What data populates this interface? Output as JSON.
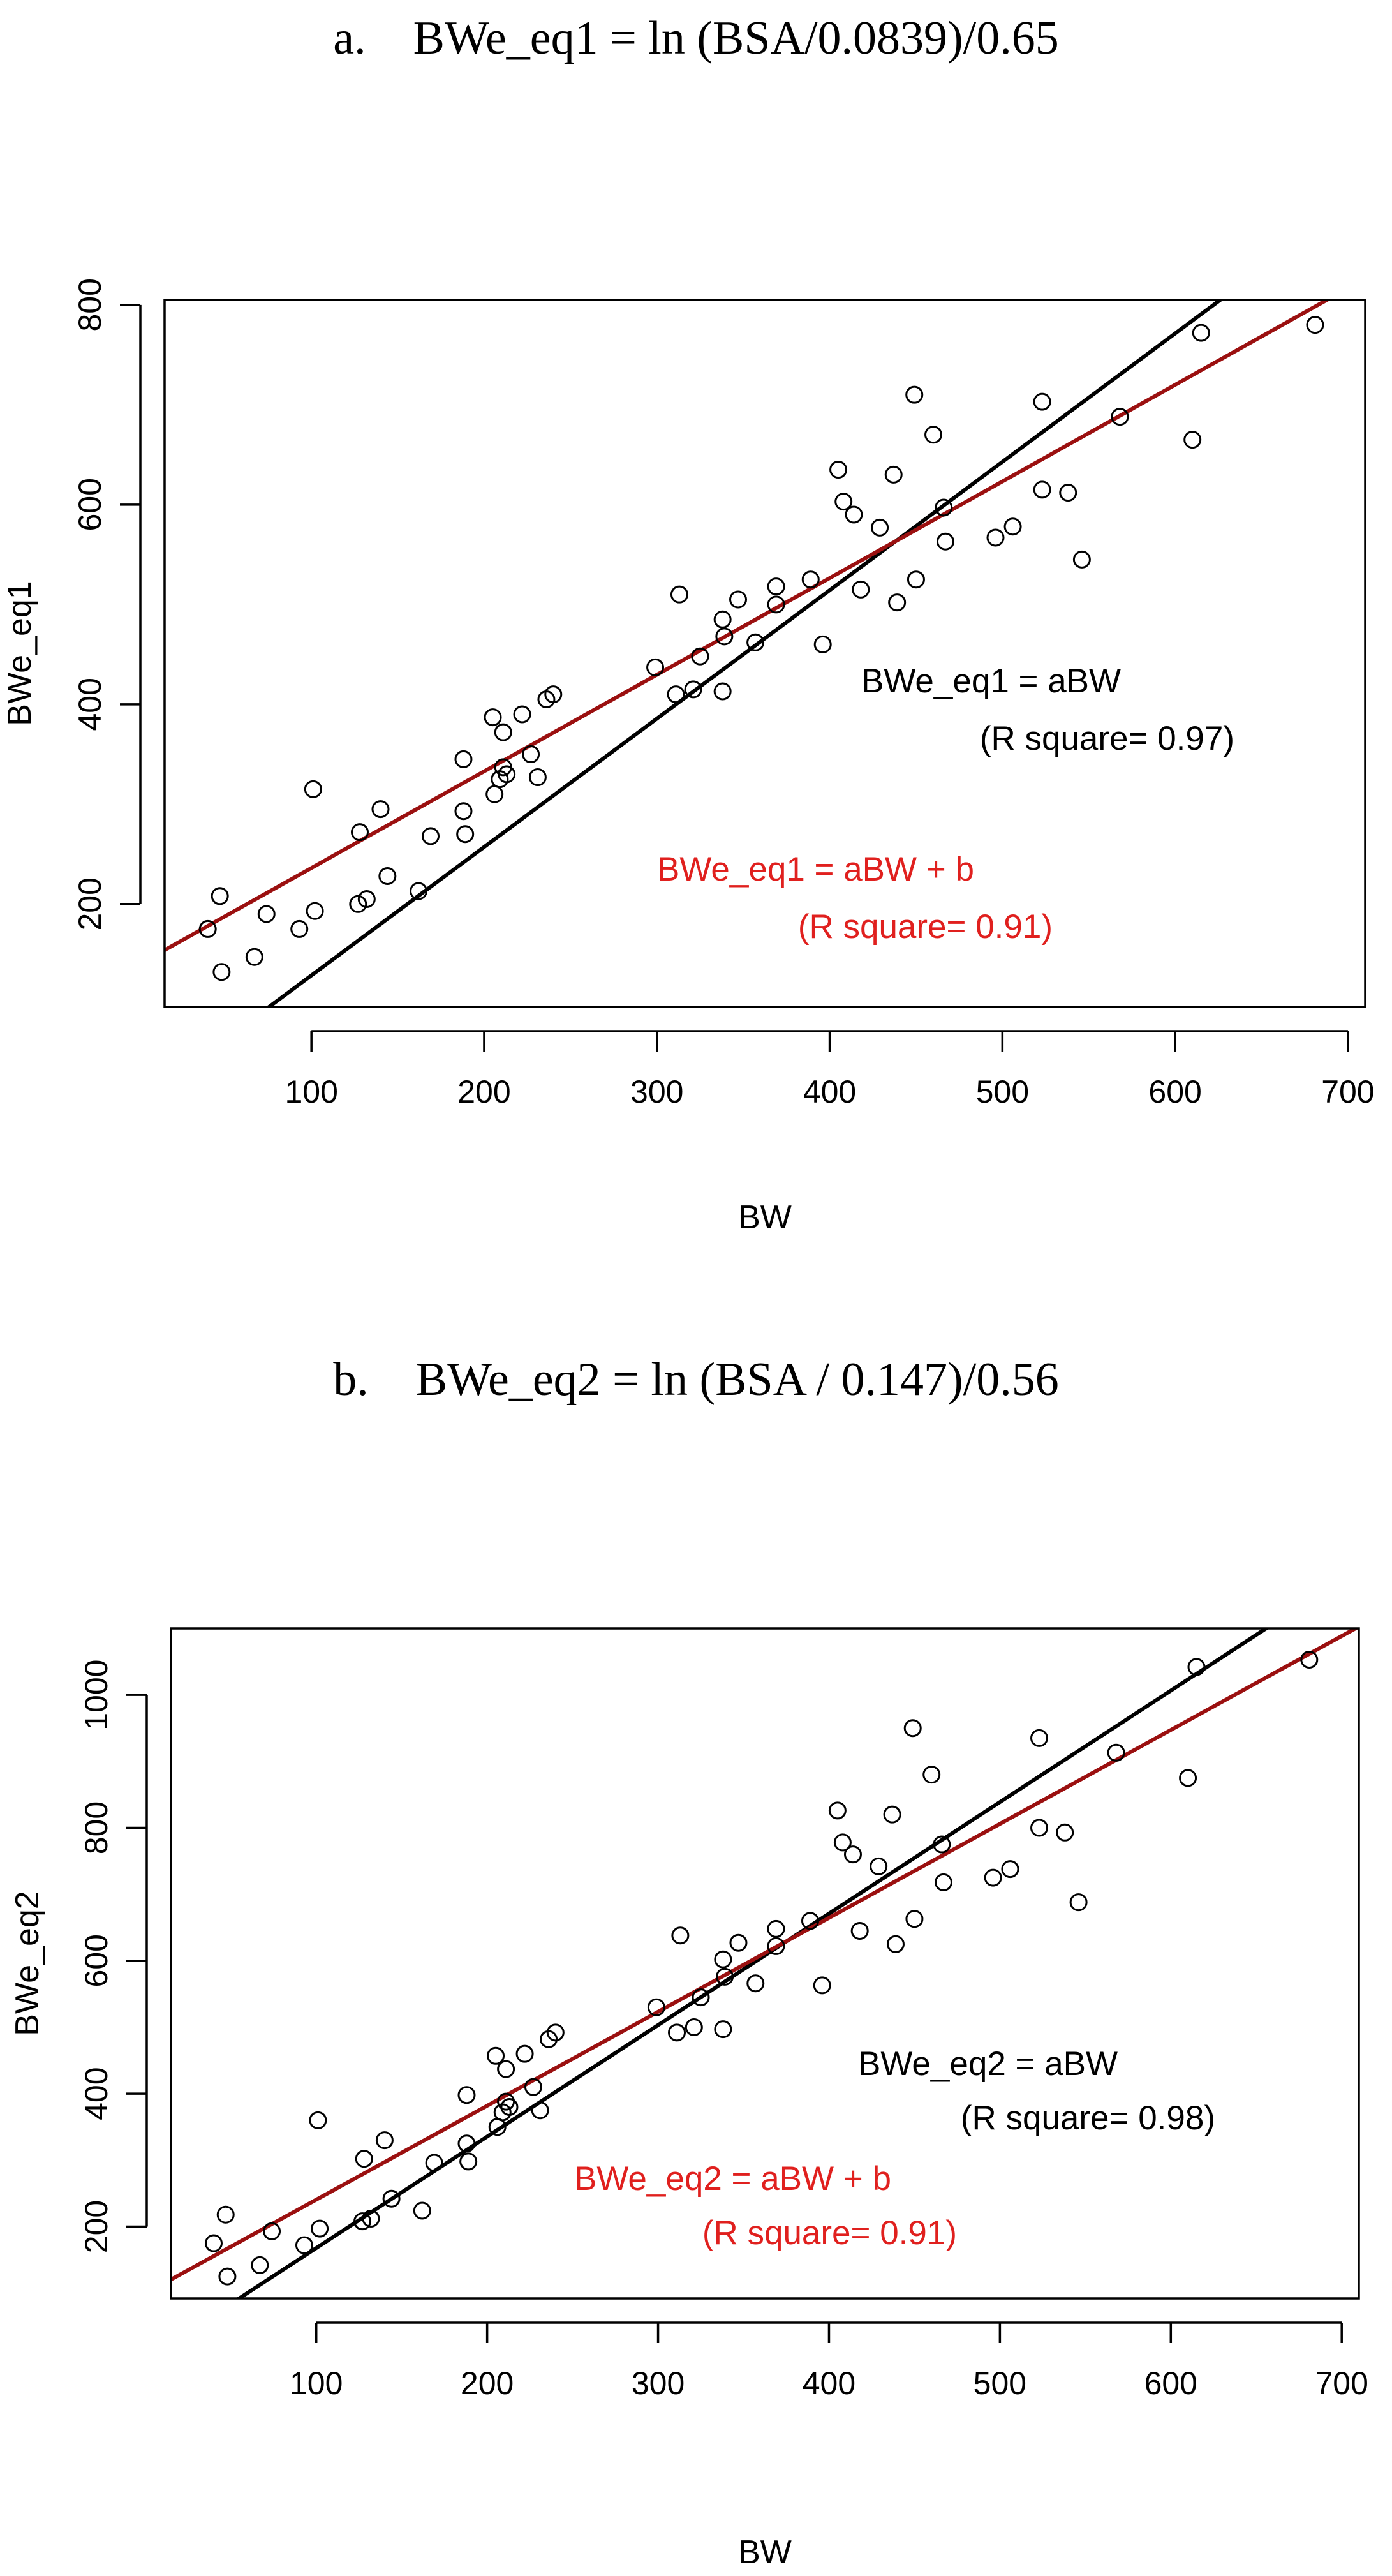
{
  "captions": {
    "a": "a.    BWe_eq1 = ln (BSA/0.0839)/0.65",
    "b": "b.    BWe_eq2 = ln (BSA / 0.147)/0.56"
  },
  "colors": {
    "black_fit": "#000000",
    "red_fit": "#9b1010",
    "red_text": "#e0201e",
    "points": "#000000"
  },
  "chart_data": [
    {
      "type": "scatter",
      "title": "",
      "xlabel": "BW",
      "ylabel": "BWe_eq1",
      "xlim": [
        15,
        710
      ],
      "ylim": [
        97,
        805
      ],
      "xticks": [
        100,
        200,
        300,
        400,
        500,
        600,
        700
      ],
      "yticks": [
        200,
        400,
        600,
        800
      ],
      "grid": false,
      "points": [
        [
          40,
          175
        ],
        [
          47,
          208
        ],
        [
          48,
          132
        ],
        [
          67,
          147
        ],
        [
          74,
          190
        ],
        [
          93,
          175
        ],
        [
          101,
          315
        ],
        [
          102,
          193
        ],
        [
          127,
          200
        ],
        [
          128,
          272
        ],
        [
          132,
          205
        ],
        [
          140,
          295
        ],
        [
          144,
          228
        ],
        [
          162,
          213
        ],
        [
          169,
          268
        ],
        [
          188,
          345
        ],
        [
          188,
          293
        ],
        [
          189,
          270
        ],
        [
          205,
          387
        ],
        [
          206,
          310
        ],
        [
          209,
          325
        ],
        [
          211,
          337
        ],
        [
          211,
          372
        ],
        [
          213,
          330
        ],
        [
          222,
          390
        ],
        [
          227,
          350
        ],
        [
          231,
          327
        ],
        [
          236,
          405
        ],
        [
          240,
          410
        ],
        [
          299,
          437
        ],
        [
          311,
          410
        ],
        [
          313,
          510
        ],
        [
          321,
          415
        ],
        [
          325,
          448
        ],
        [
          338,
          485
        ],
        [
          338,
          413
        ],
        [
          339,
          468
        ],
        [
          347,
          505
        ],
        [
          357,
          462
        ],
        [
          369,
          518
        ],
        [
          369,
          500
        ],
        [
          389,
          525
        ],
        [
          396,
          460
        ],
        [
          405,
          635
        ],
        [
          408,
          603
        ],
        [
          414,
          590
        ],
        [
          418,
          515
        ],
        [
          429,
          577
        ],
        [
          437,
          630
        ],
        [
          439,
          502
        ],
        [
          449,
          710
        ],
        [
          450,
          525
        ],
        [
          460,
          670
        ],
        [
          466,
          597
        ],
        [
          467,
          563
        ],
        [
          496,
          567
        ],
        [
          506,
          578
        ],
        [
          523,
          703
        ],
        [
          523,
          615
        ],
        [
          538,
          612
        ],
        [
          546,
          545
        ],
        [
          568,
          688
        ],
        [
          610,
          665
        ],
        [
          615,
          772
        ],
        [
          681,
          780
        ]
      ],
      "fits": [
        {
          "name": "BWe_eq1 = aBW",
          "r_squared_text": "(R square= 0.97)",
          "color": "#000000",
          "slope": 1.2857,
          "intercept": 0
        },
        {
          "name": "BWe_eq1 = aBW + b",
          "r_squared_text": "(R square= 0.91)",
          "color": "#9b1010",
          "slope": 0.9677,
          "intercept": 139.35
        }
      ]
    },
    {
      "type": "scatter",
      "title": "",
      "xlabel": "BW",
      "ylabel": "BWe_eq2",
      "xlim": [
        15,
        710
      ],
      "ylim": [
        92,
        1100
      ],
      "xticks": [
        100,
        200,
        300,
        400,
        500,
        600,
        700
      ],
      "yticks": [
        200,
        400,
        600,
        800,
        1000
      ],
      "grid": false,
      "points": [
        [
          40,
          175
        ],
        [
          47,
          218
        ],
        [
          48,
          125
        ],
        [
          67,
          142
        ],
        [
          74,
          193
        ],
        [
          93,
          172
        ],
        [
          101,
          360
        ],
        [
          102,
          197
        ],
        [
          127,
          208
        ],
        [
          128,
          302
        ],
        [
          132,
          212
        ],
        [
          140,
          330
        ],
        [
          144,
          242
        ],
        [
          162,
          224
        ],
        [
          169,
          296
        ],
        [
          188,
          398
        ],
        [
          188,
          325
        ],
        [
          189,
          298
        ],
        [
          205,
          457
        ],
        [
          206,
          350
        ],
        [
          209,
          372
        ],
        [
          211,
          388
        ],
        [
          211,
          437
        ],
        [
          213,
          380
        ],
        [
          222,
          460
        ],
        [
          227,
          410
        ],
        [
          231,
          375
        ],
        [
          236,
          482
        ],
        [
          240,
          492
        ],
        [
          299,
          530
        ],
        [
          311,
          492
        ],
        [
          313,
          638
        ],
        [
          321,
          500
        ],
        [
          325,
          545
        ],
        [
          338,
          602
        ],
        [
          338,
          497
        ],
        [
          339,
          576
        ],
        [
          347,
          627
        ],
        [
          357,
          566
        ],
        [
          369,
          648
        ],
        [
          369,
          622
        ],
        [
          389,
          660
        ],
        [
          396,
          563
        ],
        [
          405,
          826
        ],
        [
          408,
          778
        ],
        [
          414,
          760
        ],
        [
          418,
          645
        ],
        [
          429,
          742
        ],
        [
          437,
          820
        ],
        [
          439,
          625
        ],
        [
          449,
          950
        ],
        [
          450,
          663
        ],
        [
          460,
          880
        ],
        [
          466,
          775
        ],
        [
          467,
          718
        ],
        [
          496,
          725
        ],
        [
          506,
          738
        ],
        [
          523,
          935
        ],
        [
          523,
          800
        ],
        [
          538,
          793
        ],
        [
          546,
          688
        ],
        [
          568,
          913
        ],
        [
          610,
          875
        ],
        [
          615,
          1042
        ],
        [
          681,
          1053
        ]
      ],
      "fits": [
        {
          "name": "BWe_eq2 = aBW",
          "r_squared_text": "(R square= 0.98)",
          "color": "#000000",
          "slope": 1.6774,
          "intercept": 0
        },
        {
          "name": "BWe_eq2 = aBW + b",
          "r_squared_text": "(R square= 0.91)",
          "color": "#9b1010",
          "slope": 1.4134,
          "intercept": 99.2
        }
      ]
    }
  ]
}
